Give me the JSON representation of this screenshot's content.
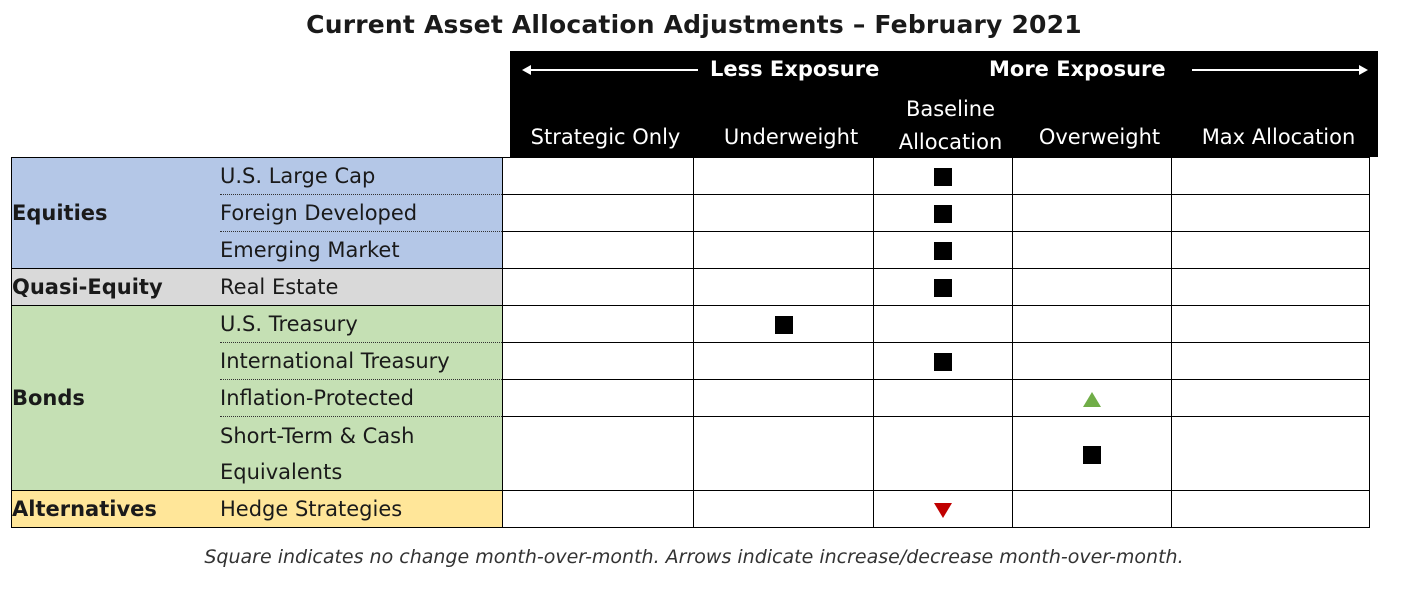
{
  "title": "Current Asset Allocation Adjustments – February 2021",
  "header": {
    "less_exposure": "Less Exposure",
    "more_exposure": "More Exposure",
    "columns": {
      "strategic_only": "Strategic Only",
      "underweight": "Underweight",
      "baseline_line1": "Baseline",
      "baseline_line2": "Allocation",
      "overweight": "Overweight",
      "max_allocation": "Max Allocation"
    }
  },
  "categories": {
    "equities": "Equities",
    "quasi_equity": "Quasi-Equity",
    "bonds": "Bonds",
    "alternatives": "Alternatives"
  },
  "rows": [
    {
      "label": "U.S. Large Cap",
      "position": "baseline",
      "marker": "square"
    },
    {
      "label": "Foreign Developed",
      "position": "baseline",
      "marker": "square"
    },
    {
      "label": "Emerging Market",
      "position": "baseline",
      "marker": "square"
    },
    {
      "label": "Real Estate",
      "position": "baseline",
      "marker": "square"
    },
    {
      "label": "U.S. Treasury",
      "position": "underweight",
      "marker": "square"
    },
    {
      "label": "International Treasury",
      "position": "baseline",
      "marker": "square"
    },
    {
      "label": "Inflation-Protected",
      "position": "overweight",
      "marker": "arrow-up"
    },
    {
      "label_line1": "Short-Term & Cash",
      "label_line2": "Equivalents",
      "position": "overweight",
      "marker": "square"
    },
    {
      "label": "Hedge Strategies",
      "position": "baseline",
      "marker": "arrow-down"
    }
  ],
  "colors": {
    "equities": "#b4c7e7",
    "quasi_equity": "#d9d9d9",
    "bonds": "#c5e0b4",
    "alternatives": "#ffe699",
    "arrow_up": "#70ad47",
    "arrow_down": "#c00000"
  },
  "footnote": "Square indicates no change month-over-month. Arrows indicate increase/decrease month-over-month."
}
